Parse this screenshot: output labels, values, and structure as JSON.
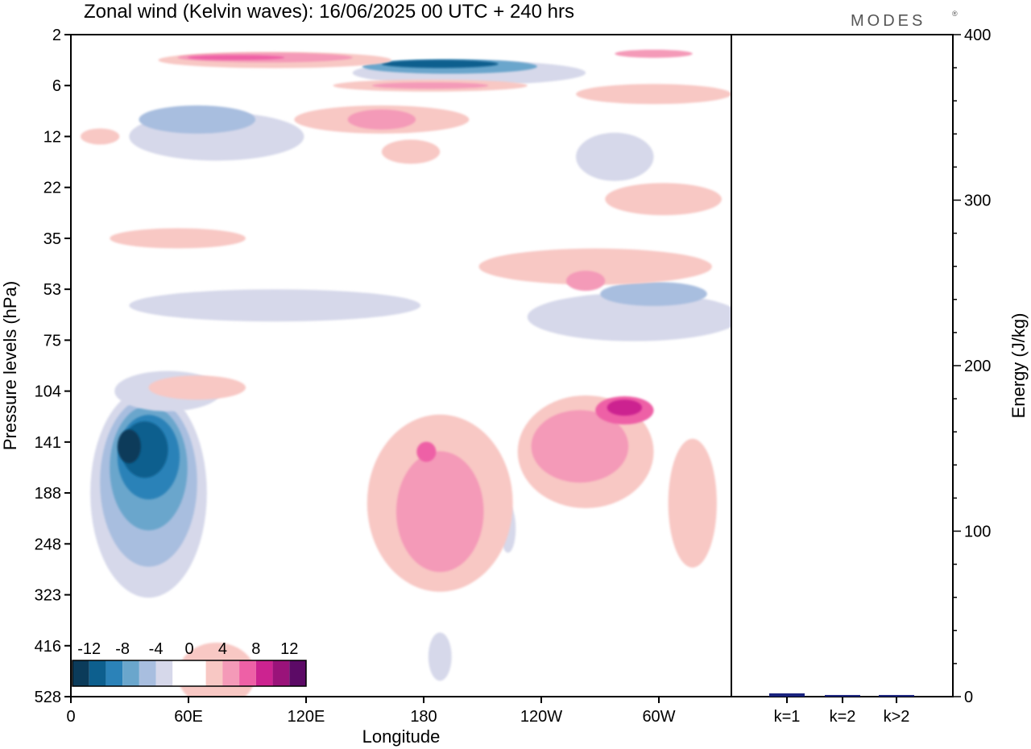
{
  "chart_data": [
    {
      "type": "heatmap",
      "title": "Zonal wind (Kelvin waves):  16/06/2025  00 UTC  + 240 hrs",
      "xlabel": "Longitude",
      "ylabel": "Pressure levels (hPa)",
      "x_ticks": [
        "0",
        "60E",
        "120E",
        "180",
        "120W",
        "60W"
      ],
      "y_ticks": [
        "2",
        "6",
        "12",
        "22",
        "35",
        "53",
        "75",
        "104",
        "141",
        "188",
        "248",
        "323",
        "416",
        "528"
      ],
      "xlim": [
        0,
        340
      ],
      "colorbar": {
        "labels": [
          "-12",
          "-8",
          "-4",
          "0",
          "4",
          "8",
          "12"
        ],
        "colors": [
          "#0b3b5a",
          "#0d5f8e",
          "#2b82b8",
          "#6aa6cc",
          "#a8bedf",
          "#d6d8ea",
          "#ffffff",
          "#ffffff",
          "#f8c8c4",
          "#f49ab8",
          "#ee60a6",
          "#cc2390",
          "#9a137a",
          "#5c0a66"
        ]
      },
      "fields": [
        {
          "sign": "neg",
          "level": 1,
          "lon": 40,
          "p": 188,
          "w": 60,
          "h": 260
        },
        {
          "sign": "neg",
          "level": 2,
          "lon": 40,
          "p": 178,
          "w": 50,
          "h": 210
        },
        {
          "sign": "neg",
          "level": 3,
          "lon": 40,
          "p": 165,
          "w": 40,
          "h": 155
        },
        {
          "sign": "neg",
          "level": 4,
          "lon": 40,
          "p": 155,
          "w": 32,
          "h": 105
        },
        {
          "sign": "neg",
          "level": 5,
          "lon": 38,
          "p": 148,
          "w": 24,
          "h": 70
        },
        {
          "sign": "neg",
          "level": 6,
          "lon": 30,
          "p": 145,
          "w": 12,
          "h": 42
        },
        {
          "sign": "neg",
          "level": 1,
          "lon": 50,
          "p": 104,
          "w": 55,
          "h": 50
        },
        {
          "sign": "neg",
          "level": 1,
          "lon": 105,
          "p": 60,
          "w": 150,
          "h": 40
        },
        {
          "sign": "neg",
          "level": 1,
          "lon": 75,
          "p": 12,
          "w": 90,
          "h": 60
        },
        {
          "sign": "neg",
          "level": 2,
          "lon": 65,
          "p": 10,
          "w": 60,
          "h": 35
        },
        {
          "sign": "neg",
          "level": 1,
          "lon": 205,
          "p": 5,
          "w": 120,
          "h": 30
        },
        {
          "sign": "neg",
          "level": 3,
          "lon": 195,
          "p": 4.5,
          "w": 90,
          "h": 18
        },
        {
          "sign": "neg",
          "level": 5,
          "lon": 190,
          "p": 4.3,
          "w": 60,
          "h": 10
        },
        {
          "sign": "neg",
          "level": 1,
          "lon": 290,
          "p": 65,
          "w": 110,
          "h": 60
        },
        {
          "sign": "neg",
          "level": 2,
          "lon": 300,
          "p": 55,
          "w": 55,
          "h": 30
        },
        {
          "sign": "neg",
          "level": 1,
          "lon": 280,
          "p": 16,
          "w": 40,
          "h": 60
        },
        {
          "sign": "neg",
          "level": 1,
          "lon": 190,
          "p": 440,
          "w": 12,
          "h": 60
        },
        {
          "sign": "neg",
          "level": 1,
          "lon": 225,
          "p": 230,
          "w": 8,
          "h": 60
        },
        {
          "sign": "pos",
          "level": 1,
          "lon": 190,
          "p": 200,
          "w": 75,
          "h": 220
        },
        {
          "sign": "pos",
          "level": 2,
          "lon": 190,
          "p": 210,
          "w": 45,
          "h": 150
        },
        {
          "sign": "pos",
          "level": 3,
          "lon": 183,
          "p": 150,
          "w": 10,
          "h": 25
        },
        {
          "sign": "pos",
          "level": 1,
          "lon": 265,
          "p": 150,
          "w": 70,
          "h": 140
        },
        {
          "sign": "pos",
          "level": 2,
          "lon": 262,
          "p": 145,
          "w": 50,
          "h": 90
        },
        {
          "sign": "pos",
          "level": 3,
          "lon": 285,
          "p": 118,
          "w": 30,
          "h": 35
        },
        {
          "sign": "pos",
          "level": 4,
          "lon": 285,
          "p": 116,
          "w": 18,
          "h": 20
        },
        {
          "sign": "pos",
          "level": 1,
          "lon": 270,
          "p": 45,
          "w": 120,
          "h": 45
        },
        {
          "sign": "pos",
          "level": 2,
          "lon": 265,
          "p": 50,
          "w": 20,
          "h": 25
        },
        {
          "sign": "pos",
          "level": 1,
          "lon": 55,
          "p": 35,
          "w": 70,
          "h": 25
        },
        {
          "sign": "pos",
          "level": 1,
          "lon": 65,
          "p": 102,
          "w": 50,
          "h": 30
        },
        {
          "sign": "pos",
          "level": 1,
          "lon": 75,
          "p": 480,
          "w": 40,
          "h": 80
        },
        {
          "sign": "pos",
          "level": 1,
          "lon": 320,
          "p": 200,
          "w": 25,
          "h": 160
        },
        {
          "sign": "pos",
          "level": 1,
          "lon": 160,
          "p": 10,
          "w": 90,
          "h": 35
        },
        {
          "sign": "pos",
          "level": 2,
          "lon": 160,
          "p": 10,
          "w": 35,
          "h": 25
        },
        {
          "sign": "pos",
          "level": 1,
          "lon": 185,
          "p": 6,
          "w": 100,
          "h": 15
        },
        {
          "sign": "pos",
          "level": 2,
          "lon": 185,
          "p": 6,
          "w": 60,
          "h": 8
        },
        {
          "sign": "pos",
          "level": 1,
          "lon": 105,
          "p": 4,
          "w": 120,
          "h": 20
        },
        {
          "sign": "pos",
          "level": 2,
          "lon": 100,
          "p": 3.8,
          "w": 90,
          "h": 12
        },
        {
          "sign": "pos",
          "level": 3,
          "lon": 85,
          "p": 3.8,
          "w": 50,
          "h": 6
        },
        {
          "sign": "pos",
          "level": 1,
          "lon": 300,
          "p": 7,
          "w": 80,
          "h": 25
        },
        {
          "sign": "pos",
          "level": 2,
          "lon": 300,
          "p": 3.5,
          "w": 40,
          "h": 10
        },
        {
          "sign": "pos",
          "level": 1,
          "lon": 305,
          "p": 25,
          "w": 60,
          "h": 40
        },
        {
          "sign": "pos",
          "level": 1,
          "lon": 15,
          "p": 12,
          "w": 20,
          "h": 20
        },
        {
          "sign": "pos",
          "level": 1,
          "lon": 175,
          "p": 15,
          "w": 30,
          "h": 30
        }
      ]
    },
    {
      "type": "bar",
      "ylabel": "Energy (J/kg)",
      "categories": [
        "k=1",
        "k=2",
        "k>2"
      ],
      "values": [
        2,
        1,
        1
      ],
      "ylim": [
        0,
        400
      ],
      "yticks": [
        "0",
        "100",
        "200",
        "300",
        "400"
      ],
      "bar_color": "#1a237e"
    }
  ],
  "logo_text": "MODES",
  "logo_mark": "®"
}
